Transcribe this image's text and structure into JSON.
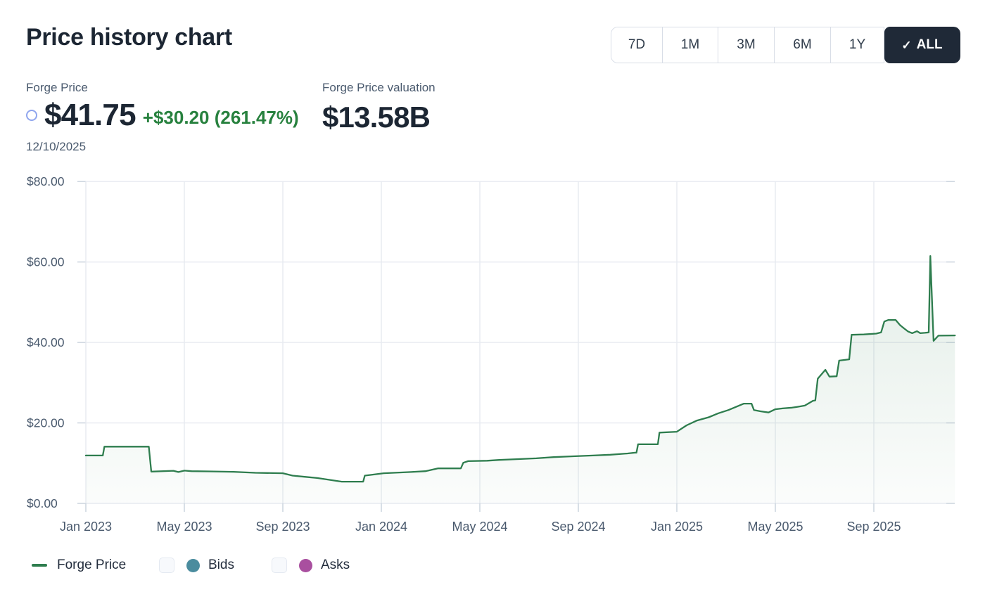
{
  "header": {
    "title": "Price history chart",
    "range_buttons": [
      {
        "label": "7D",
        "selected": false
      },
      {
        "label": "1M",
        "selected": false
      },
      {
        "label": "3M",
        "selected": false
      },
      {
        "label": "6M",
        "selected": false
      },
      {
        "label": "1Y",
        "selected": false
      },
      {
        "label": "ALL",
        "selected": true
      }
    ],
    "selected_check_glyph": "✓"
  },
  "price_panel": {
    "label": "Forge Price",
    "price": "$41.75",
    "change": "+$30.20 (261.47%)",
    "date": "12/10/2025",
    "valuation_label": "Forge Price valuation",
    "valuation_value": "$13.58B"
  },
  "legend": {
    "items": [
      {
        "label": "Forge Price",
        "swatch": "line",
        "color": "#2e7d4e",
        "has_checkbox": false,
        "checked": null
      },
      {
        "label": "Bids",
        "swatch": "dot",
        "color": "#4a8c9e",
        "has_checkbox": true,
        "checked": false
      },
      {
        "label": "Asks",
        "swatch": "dot",
        "color": "#a94f9f",
        "has_checkbox": true,
        "checked": false
      }
    ]
  },
  "colors": {
    "accent_green_line": "#2e7d4e",
    "positive_change_text": "#27813e",
    "dark_text": "#1c2633",
    "slate_label_text": "#4a5a6e",
    "selected_button_bg": "#1f2937",
    "grid_line": "#e7eaf0",
    "axis_tick": "#c8d1dc",
    "marker_circle_blue": "#8fa5ee",
    "bids_dot": "#4a8c9e",
    "asks_dot": "#a94f9f"
  },
  "chart_data": {
    "type": "area",
    "title": "Price history chart",
    "xlabel": "",
    "ylabel": "",
    "ylim": [
      0,
      80
    ],
    "grid": true,
    "legend_position": "bottom",
    "y_axis": {
      "tick_values": [
        0,
        20,
        40,
        60,
        80
      ],
      "tick_labels": [
        "$0.00",
        "$20.00",
        "$40.00",
        "$60.00",
        "$80.00"
      ]
    },
    "x_axis": {
      "tick_dates": [
        "2023-01-01",
        "2023-05-01",
        "2023-09-01",
        "2024-01-01",
        "2024-05-01",
        "2024-09-01",
        "2025-01-01",
        "2025-05-01",
        "2025-09-01"
      ],
      "tick_labels": [
        "Jan 2023",
        "May 2023",
        "Sep 2023",
        "Jan 2024",
        "May 2024",
        "Sep 2024",
        "Jan 2025",
        "May 2025",
        "Sep 2025"
      ]
    },
    "series": [
      {
        "name": "Forge Price",
        "color": "#2e7d4e",
        "fill_from": "rgba(47,125,79,0.17)",
        "fill_to": "rgba(47,125,79,0.02)",
        "points": [
          [
            "2023-01-01",
            11.9
          ],
          [
            "2023-01-22",
            11.9
          ],
          [
            "2023-01-24",
            14.1
          ],
          [
            "2023-03-18",
            14.1
          ],
          [
            "2023-03-21",
            7.9
          ],
          [
            "2023-04-18",
            8.1
          ],
          [
            "2023-04-24",
            7.8
          ],
          [
            "2023-05-01",
            8.15
          ],
          [
            "2023-05-10",
            8.0
          ],
          [
            "2023-06-01",
            7.95
          ],
          [
            "2023-07-01",
            7.85
          ],
          [
            "2023-07-28",
            7.6
          ],
          [
            "2023-09-01",
            7.5
          ],
          [
            "2023-09-13",
            6.9
          ],
          [
            "2023-09-28",
            6.6
          ],
          [
            "2023-10-13",
            6.3
          ],
          [
            "2023-11-13",
            5.4
          ],
          [
            "2023-12-09",
            5.4
          ],
          [
            "2023-12-11",
            6.9
          ],
          [
            "2023-12-19",
            7.1
          ],
          [
            "2024-01-04",
            7.5
          ],
          [
            "2024-01-16",
            7.6
          ],
          [
            "2024-02-07",
            7.8
          ],
          [
            "2024-02-25",
            8.0
          ],
          [
            "2024-03-10",
            8.7
          ],
          [
            "2024-04-08",
            8.7
          ],
          [
            "2024-04-11",
            10.1
          ],
          [
            "2024-04-17",
            10.5
          ],
          [
            "2024-05-10",
            10.6
          ],
          [
            "2024-05-25",
            10.8
          ],
          [
            "2024-06-16",
            11.0
          ],
          [
            "2024-07-10",
            11.2
          ],
          [
            "2024-08-01",
            11.5
          ],
          [
            "2024-08-25",
            11.7
          ],
          [
            "2024-09-19",
            11.9
          ],
          [
            "2024-10-10",
            12.1
          ],
          [
            "2024-11-01",
            12.4
          ],
          [
            "2024-11-10",
            12.6
          ],
          [
            "2024-11-12",
            12.6
          ],
          [
            "2024-11-14",
            14.7
          ],
          [
            "2024-12-08",
            14.7
          ],
          [
            "2024-12-10",
            17.6
          ],
          [
            "2025-01-01",
            17.8
          ],
          [
            "2025-01-13",
            19.4
          ],
          [
            "2025-01-26",
            20.6
          ],
          [
            "2025-02-10",
            21.4
          ],
          [
            "2025-02-22",
            22.4
          ],
          [
            "2025-03-04",
            23.2
          ],
          [
            "2025-03-11",
            23.8
          ],
          [
            "2025-03-23",
            24.8
          ],
          [
            "2025-04-02",
            24.8
          ],
          [
            "2025-04-05",
            23.2
          ],
          [
            "2025-04-13",
            22.9
          ],
          [
            "2025-04-23",
            22.6
          ],
          [
            "2025-05-01",
            23.4
          ],
          [
            "2025-05-10",
            23.6
          ],
          [
            "2025-05-22",
            23.8
          ],
          [
            "2025-05-28",
            24.0
          ],
          [
            "2025-06-07",
            24.3
          ],
          [
            "2025-06-17",
            25.5
          ],
          [
            "2025-06-20",
            25.6
          ],
          [
            "2025-06-23",
            31.0
          ],
          [
            "2025-07-02",
            33.2
          ],
          [
            "2025-07-07",
            31.5
          ],
          [
            "2025-07-16",
            31.6
          ],
          [
            "2025-07-19",
            35.5
          ],
          [
            "2025-08-01",
            35.8
          ],
          [
            "2025-08-04",
            41.9
          ],
          [
            "2025-08-19",
            42.0
          ],
          [
            "2025-09-04",
            42.2
          ],
          [
            "2025-09-10",
            42.5
          ],
          [
            "2025-09-14",
            45.2
          ],
          [
            "2025-09-19",
            45.6
          ],
          [
            "2025-09-28",
            45.6
          ],
          [
            "2025-10-03",
            44.3
          ],
          [
            "2025-10-08",
            43.5
          ],
          [
            "2025-10-13",
            42.7
          ],
          [
            "2025-10-18",
            42.3
          ],
          [
            "2025-10-24",
            42.8
          ],
          [
            "2025-10-28",
            42.3
          ],
          [
            "2025-11-03",
            42.4
          ],
          [
            "2025-11-08",
            42.5
          ],
          [
            "2025-11-10",
            61.5
          ],
          [
            "2025-11-14",
            40.4
          ],
          [
            "2025-11-20",
            41.7
          ],
          [
            "2025-12-10",
            41.75
          ]
        ]
      }
    ]
  }
}
